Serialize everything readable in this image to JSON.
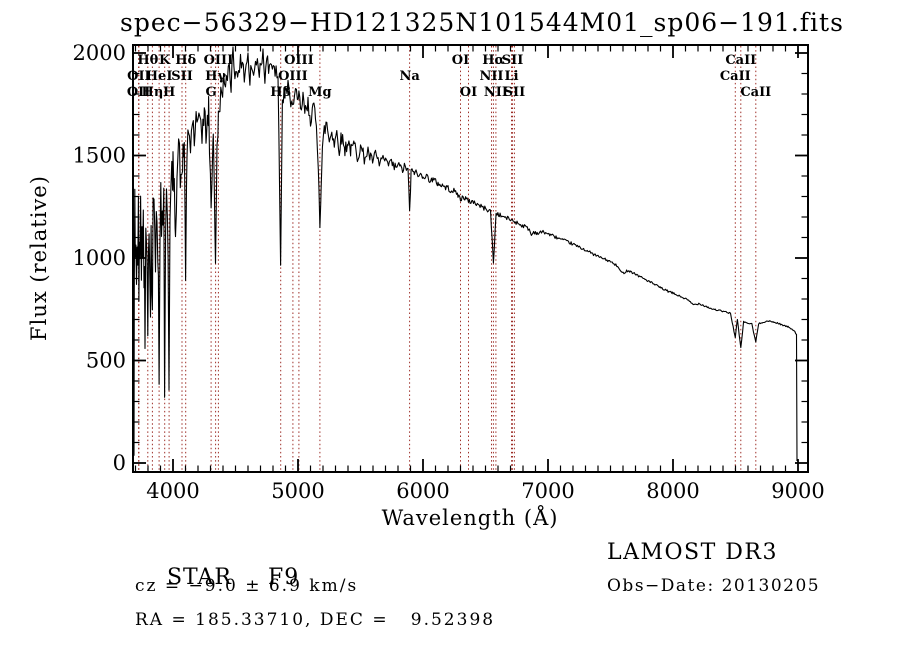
{
  "title": "spec−56329−HD121325N101544M01_sp06−191.fits",
  "annotations": {
    "left": {
      "object_class": "STAR",
      "subclass": "F9",
      "cz": "cz = −9.0 ± 6.9 km/s",
      "ra_dec": "RA = 185.33710, DEC =   9.52398"
    },
    "right": {
      "survey": "LAMOST DR3",
      "obs_date": "Obs−Date: 20130205"
    }
  },
  "chart_data": {
    "type": "line",
    "title": "spec−56329−HD121325N101544M01_sp06−191.fits",
    "xlabel": "Wavelength (Å)",
    "ylabel": "Flux (relative)",
    "xlim": [
      3680,
      9080
    ],
    "ylim": [
      0,
      2000
    ],
    "x_ticks": [
      4000,
      5000,
      6000,
      7000,
      8000,
      9000
    ],
    "y_ticks": [
      0,
      500,
      1000,
      1500,
      2000
    ],
    "x_minor_step": 100,
    "y_minor_step": 100,
    "grid": false,
    "legend": "none",
    "axis_color": "#000000",
    "spectrum_color": "#000000",
    "line_marker_color": "#9e2f28",
    "noise_seed": 42,
    "noise_profile": [
      [
        3688,
        150
      ],
      [
        3800,
        140
      ],
      [
        3900,
        130
      ],
      [
        3970,
        120
      ],
      [
        4000,
        100
      ],
      [
        4100,
        85
      ],
      [
        4250,
        75
      ],
      [
        4400,
        60
      ],
      [
        4600,
        52
      ],
      [
        4800,
        50
      ],
      [
        5000,
        52
      ],
      [
        5200,
        45
      ],
      [
        5400,
        38
      ],
      [
        5600,
        30
      ],
      [
        5800,
        24
      ],
      [
        6000,
        20
      ],
      [
        6200,
        16
      ],
      [
        6400,
        13
      ],
      [
        6600,
        11
      ],
      [
        6800,
        10
      ],
      [
        7000,
        8
      ],
      [
        7300,
        7
      ],
      [
        7600,
        6
      ],
      [
        8000,
        5
      ],
      [
        8400,
        4
      ],
      [
        8700,
        4
      ],
      [
        9000,
        3
      ]
    ],
    "spectral_lines": [
      {
        "label": "Hθ",
        "wavelength": 3798.0,
        "row": 1
      },
      {
        "label": "K",
        "wavelength": 3933.7,
        "row": 1
      },
      {
        "label": "Hδ",
        "wavelength": 4101.7,
        "row": 1
      },
      {
        "label": "OIII",
        "wavelength": 4363.2,
        "row": 1
      },
      {
        "label": "OIII",
        "wavelength": 5006.8,
        "row": 1
      },
      {
        "label": "OI",
        "wavelength": 6300.3,
        "row": 1
      },
      {
        "label": "Hα",
        "wavelength": 6562.8,
        "row": 1
      },
      {
        "label": "SII",
        "wavelength": 6716.4,
        "row": 1
      },
      {
        "label": "CaII",
        "wavelength": 8542.1,
        "row": 1
      },
      {
        "label": "OII",
        "wavelength": 3727.1,
        "row": 2
      },
      {
        "label": "HeI",
        "wavelength": 3889.0,
        "row": 2
      },
      {
        "label": "SII",
        "wavelength": 4072.0,
        "row": 2
      },
      {
        "label": "Hγ",
        "wavelength": 4340.5,
        "row": 2
      },
      {
        "label": "OIII",
        "wavelength": 4958.9,
        "row": 2
      },
      {
        "label": "Na",
        "wavelength": 5893.0,
        "row": 2
      },
      {
        "label": "NII",
        "wavelength": 6548.1,
        "row": 2
      },
      {
        "label": "Li",
        "wavelength": 6707.8,
        "row": 2
      },
      {
        "label": "CaII",
        "wavelength": 8498.0,
        "row": 2
      },
      {
        "label": "OII",
        "wavelength": 3725.0,
        "row": 3
      },
      {
        "label": "Hη",
        "wavelength": 3835.4,
        "row": 3
      },
      {
        "label": "H",
        "wavelength": 3968.5,
        "row": 3
      },
      {
        "label": "G",
        "wavelength": 4305.0,
        "row": 3
      },
      {
        "label": "Hβ",
        "wavelength": 4861.3,
        "row": 3
      },
      {
        "label": "Mg",
        "wavelength": 5175.4,
        "row": 3
      },
      {
        "label": "OI",
        "wavelength": 6363.8,
        "row": 3
      },
      {
        "label": "NII",
        "wavelength": 6583.5,
        "row": 3
      },
      {
        "label": "SII",
        "wavelength": 6730.8,
        "row": 3
      },
      {
        "label": "CaII",
        "wavelength": 8662.1,
        "row": 3
      }
    ],
    "series": [
      {
        "name": "flux",
        "points": [
          [
            3688,
            5
          ],
          [
            3690,
            900
          ],
          [
            3694,
            1230
          ],
          [
            3698,
            1000
          ],
          [
            3703,
            1160
          ],
          [
            3708,
            870
          ],
          [
            3713,
            1120
          ],
          [
            3718,
            960
          ],
          [
            3723,
            1190
          ],
          [
            3727,
            790
          ],
          [
            3731,
            1150
          ],
          [
            3736,
            980
          ],
          [
            3741,
            1230
          ],
          [
            3747,
            900
          ],
          [
            3752,
            1240
          ],
          [
            3757,
            1000
          ],
          [
            3762,
            1180
          ],
          [
            3768,
            850
          ],
          [
            3772,
            1100
          ],
          [
            3776,
            560
          ],
          [
            3782,
            1050
          ],
          [
            3788,
            1200
          ],
          [
            3793,
            950
          ],
          [
            3798,
            640
          ],
          [
            3804,
            1100
          ],
          [
            3809,
            1240
          ],
          [
            3814,
            1000
          ],
          [
            3820,
            700
          ],
          [
            3825,
            1150
          ],
          [
            3830,
            950
          ],
          [
            3835,
            760
          ],
          [
            3841,
            1200
          ],
          [
            3848,
            1290
          ],
          [
            3854,
            1050
          ],
          [
            3860,
            980
          ],
          [
            3866,
            1240
          ],
          [
            3872,
            1300
          ],
          [
            3878,
            1100
          ],
          [
            3883,
            900
          ],
          [
            3889,
            380
          ],
          [
            3896,
            1150
          ],
          [
            3902,
            1330
          ],
          [
            3908,
            1180
          ],
          [
            3914,
            1280
          ],
          [
            3920,
            1100
          ],
          [
            3926,
            1250
          ],
          [
            3933,
            320
          ],
          [
            3941,
            1200
          ],
          [
            3948,
            1390
          ],
          [
            3955,
            1250
          ],
          [
            3961,
            1100
          ],
          [
            3968,
            350
          ],
          [
            3976,
            1150
          ],
          [
            3983,
            1300
          ],
          [
            3990,
            1380
          ],
          [
            4000,
            1430
          ],
          [
            4010,
            1300
          ],
          [
            4020,
            1180
          ],
          [
            4032,
            1420
          ],
          [
            4045,
            1560
          ],
          [
            4058,
            1420
          ],
          [
            4070,
            1330
          ],
          [
            4080,
            1520
          ],
          [
            4090,
            1560
          ],
          [
            4101,
            900
          ],
          [
            4112,
            1480
          ],
          [
            4125,
            1620
          ],
          [
            4140,
            1540
          ],
          [
            4155,
            1680
          ],
          [
            4170,
            1580
          ],
          [
            4185,
            1660
          ],
          [
            4200,
            1600
          ],
          [
            4215,
            1700
          ],
          [
            4232,
            1620
          ],
          [
            4250,
            1690
          ],
          [
            4268,
            1600
          ],
          [
            4285,
            1720
          ],
          [
            4305,
            1240
          ],
          [
            4322,
            1650
          ],
          [
            4340,
            980
          ],
          [
            4352,
            1500
          ],
          [
            4363,
            1680
          ],
          [
            4375,
            1760
          ],
          [
            4390,
            1820
          ],
          [
            4405,
            1870
          ],
          [
            4420,
            1790
          ],
          [
            4435,
            1900
          ],
          [
            4450,
            1950
          ],
          [
            4465,
            1860
          ],
          [
            4480,
            2010
          ],
          [
            4495,
            1900
          ],
          [
            4510,
            1960
          ],
          [
            4525,
            1860
          ],
          [
            4540,
            1940
          ],
          [
            4555,
            1990
          ],
          [
            4570,
            1880
          ],
          [
            4585,
            1950
          ],
          [
            4600,
            1980
          ],
          [
            4615,
            1860
          ],
          [
            4630,
            1940
          ],
          [
            4645,
            1880
          ],
          [
            4660,
            1950
          ],
          [
            4675,
            1990
          ],
          [
            4690,
            1900
          ],
          [
            4705,
            1970
          ],
          [
            4720,
            2000
          ],
          [
            4735,
            1890
          ],
          [
            4750,
            2020
          ],
          [
            4765,
            1930
          ],
          [
            4780,
            1960
          ],
          [
            4795,
            1880
          ],
          [
            4810,
            1940
          ],
          [
            4825,
            1900
          ],
          [
            4840,
            1850
          ],
          [
            4861,
            970
          ],
          [
            4875,
            1740
          ],
          [
            4890,
            1840
          ],
          [
            4905,
            1780
          ],
          [
            4920,
            1830
          ],
          [
            4935,
            1760
          ],
          [
            4950,
            1810
          ],
          [
            4965,
            1750
          ],
          [
            4980,
            1800
          ],
          [
            4995,
            1740
          ],
          [
            5007,
            1780
          ],
          [
            5020,
            1720
          ],
          [
            5040,
            1770
          ],
          [
            5060,
            1700
          ],
          [
            5080,
            1750
          ],
          [
            5100,
            1690
          ],
          [
            5120,
            1730
          ],
          [
            5140,
            1680
          ],
          [
            5155,
            1560
          ],
          [
            5167,
            1380
          ],
          [
            5175,
            1190
          ],
          [
            5185,
            1340
          ],
          [
            5195,
            1520
          ],
          [
            5210,
            1620
          ],
          [
            5230,
            1660
          ],
          [
            5250,
            1570
          ],
          [
            5270,
            1630
          ],
          [
            5290,
            1560
          ],
          [
            5310,
            1610
          ],
          [
            5330,
            1540
          ],
          [
            5350,
            1590
          ],
          [
            5375,
            1530
          ],
          [
            5400,
            1570
          ],
          [
            5425,
            1520
          ],
          [
            5450,
            1555
          ],
          [
            5475,
            1500
          ],
          [
            5500,
            1540
          ],
          [
            5530,
            1490
          ],
          [
            5560,
            1520
          ],
          [
            5590,
            1470
          ],
          [
            5620,
            1500
          ],
          [
            5650,
            1460
          ],
          [
            5680,
            1490
          ],
          [
            5710,
            1450
          ],
          [
            5740,
            1470
          ],
          [
            5770,
            1440
          ],
          [
            5800,
            1455
          ],
          [
            5830,
            1430
          ],
          [
            5860,
            1445
          ],
          [
            5880,
            1425
          ],
          [
            5893,
            1230
          ],
          [
            5905,
            1415
          ],
          [
            5930,
            1425
          ],
          [
            5960,
            1400
          ],
          [
            6000,
            1408
          ],
          [
            6040,
            1390
          ],
          [
            6080,
            1378
          ],
          [
            6120,
            1365
          ],
          [
            6160,
            1352
          ],
          [
            6200,
            1340
          ],
          [
            6240,
            1328
          ],
          [
            6280,
            1310
          ],
          [
            6300,
            1282
          ],
          [
            6320,
            1300
          ],
          [
            6345,
            1290
          ],
          [
            6363,
            1272
          ],
          [
            6390,
            1278
          ],
          [
            6420,
            1268
          ],
          [
            6450,
            1256
          ],
          [
            6480,
            1246
          ],
          [
            6510,
            1238
          ],
          [
            6540,
            1228
          ],
          [
            6563,
            976
          ],
          [
            6585,
            1218
          ],
          [
            6610,
            1210
          ],
          [
            6640,
            1202
          ],
          [
            6670,
            1195
          ],
          [
            6700,
            1188
          ],
          [
            6731,
            1178
          ],
          [
            6760,
            1170
          ],
          [
            6790,
            1160
          ],
          [
            6820,
            1152
          ],
          [
            6850,
            1140
          ],
          [
            6867,
            1110
          ],
          [
            6885,
            1128
          ],
          [
            6920,
            1120
          ],
          [
            6960,
            1128
          ],
          [
            7000,
            1118
          ],
          [
            7050,
            1105
          ],
          [
            7100,
            1092
          ],
          [
            7150,
            1080
          ],
          [
            7200,
            1068
          ],
          [
            7250,
            1052
          ],
          [
            7300,
            1040
          ],
          [
            7350,
            1022
          ],
          [
            7400,
            1008
          ],
          [
            7450,
            995
          ],
          [
            7500,
            982
          ],
          [
            7550,
            962
          ],
          [
            7594,
            925
          ],
          [
            7640,
            940
          ],
          [
            7690,
            925
          ],
          [
            7740,
            908
          ],
          [
            7790,
            892
          ],
          [
            7840,
            875
          ],
          [
            7890,
            858
          ],
          [
            7940,
            843
          ],
          [
            8000,
            828
          ],
          [
            8060,
            812
          ],
          [
            8110,
            798
          ],
          [
            8164,
            772
          ],
          [
            8210,
            778
          ],
          [
            8260,
            765
          ],
          [
            8310,
            752
          ],
          [
            8360,
            745
          ],
          [
            8410,
            738
          ],
          [
            8460,
            730
          ],
          [
            8498,
            612
          ],
          [
            8515,
            700
          ],
          [
            8542,
            560
          ],
          [
            8565,
            688
          ],
          [
            8600,
            682
          ],
          [
            8630,
            678
          ],
          [
            8662,
            590
          ],
          [
            8685,
            678
          ],
          [
            8720,
            688
          ],
          [
            8760,
            692
          ],
          [
            8800,
            688
          ],
          [
            8840,
            682
          ],
          [
            8880,
            672
          ],
          [
            8920,
            664
          ],
          [
            8950,
            655
          ],
          [
            8975,
            642
          ],
          [
            8988,
            625
          ],
          [
            8992,
            8
          ]
        ]
      }
    ]
  }
}
